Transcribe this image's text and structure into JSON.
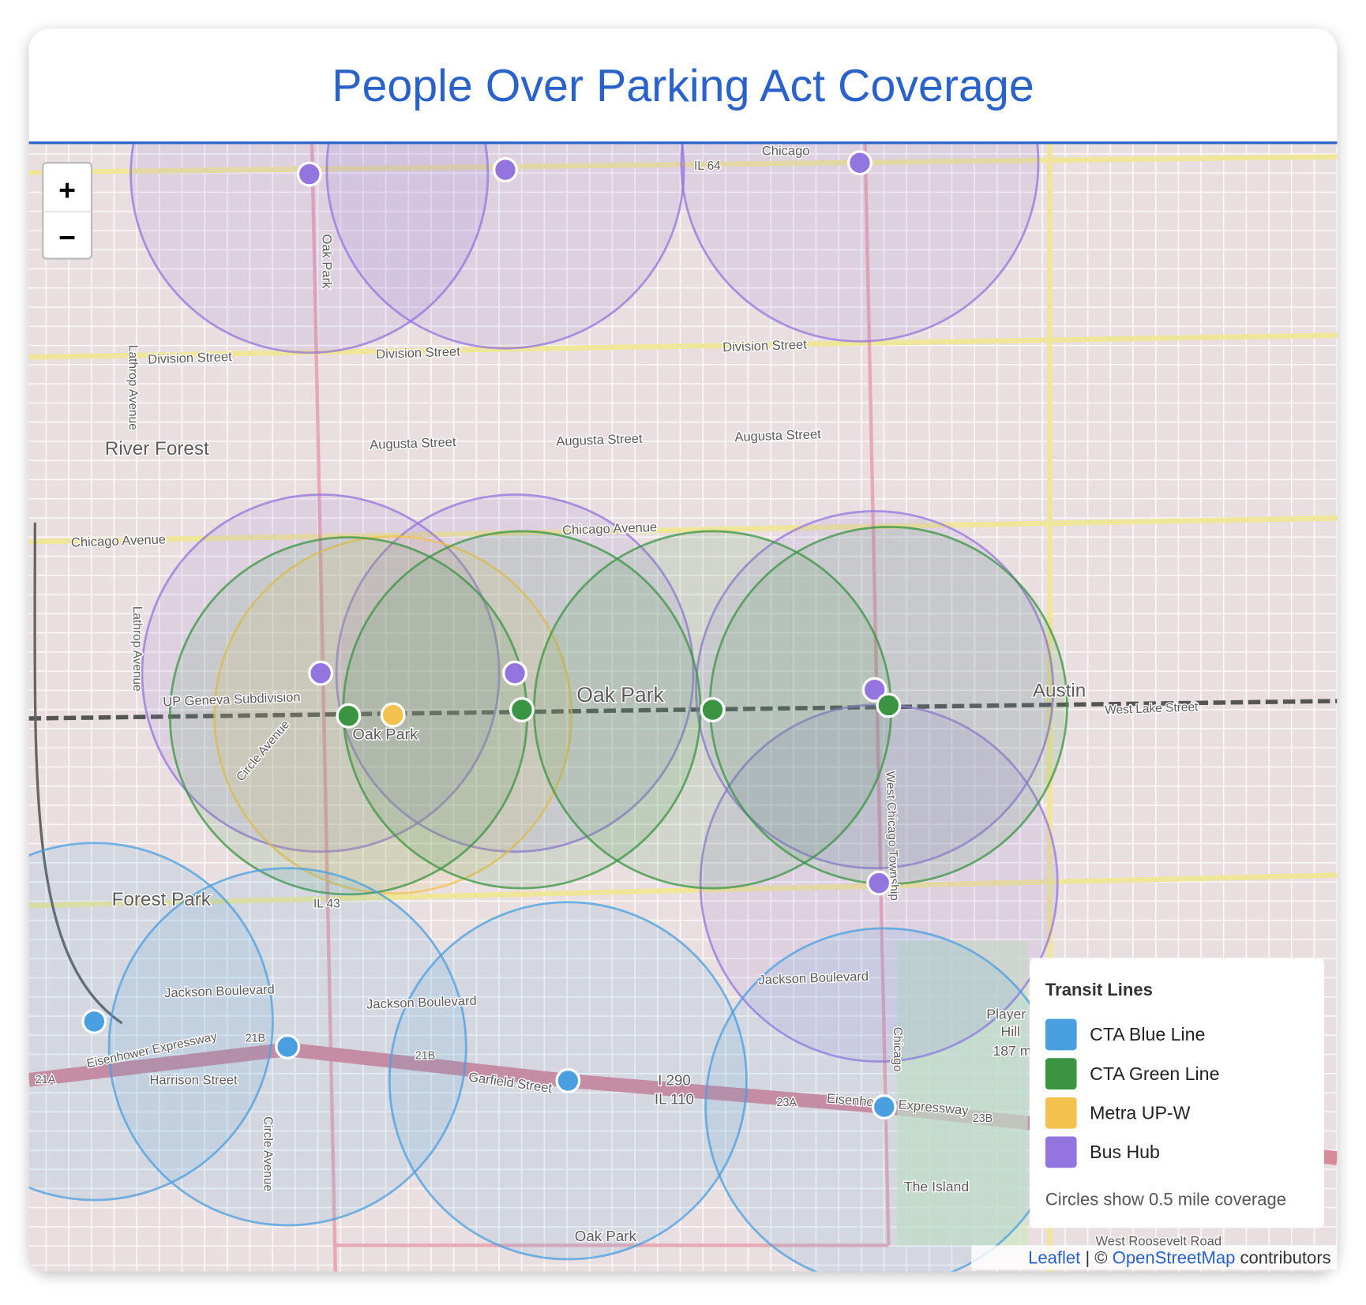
{
  "header": {
    "title": "People Over Parking Act Coverage"
  },
  "zoom": {
    "in": "+",
    "out": "−"
  },
  "legend": {
    "title": "Transit Lines",
    "items": [
      {
        "name": "CTA Blue Line",
        "color": "#4a9fe0"
      },
      {
        "name": "CTA Green Line",
        "color": "#3a9442"
      },
      {
        "name": "Metra UP-W",
        "color": "#f2c14e"
      },
      {
        "name": "Bus Hub",
        "color": "#9474de"
      }
    ],
    "note": "Circles show 0.5 mile coverage"
  },
  "map_labels": [
    "Division Street",
    "Division Street",
    "Division Street",
    "Augusta Street",
    "Augusta Street",
    "Augusta Street",
    "Chicago Avenue",
    "Chicago Avenue",
    "River Forest",
    "Oak Park",
    "Oak Park",
    "Oak Park",
    "Oak Park",
    "Forest Park",
    "Austin",
    "West Lake Street",
    "Jackson Boulevard",
    "Jackson Boulevard",
    "Jackson Boulevard",
    "Harrison Street",
    "Garfield Street",
    "Eisenhower Expressway",
    "Eisenhower Expressway",
    "Lathrop Avenue",
    "Lathrop Avenue",
    "Circle Avenue",
    "Circle Avenue",
    "West Chicago Township",
    "UP Geneva Subdivision",
    "Chicago",
    "Chicago",
    "IL 64",
    "IL 43",
    "I 290",
    "IL 110",
    "21A",
    "21B",
    "21B",
    "23A",
    "23B",
    "The Island",
    "West Roosevelt Road",
    "Player",
    "Hill",
    "187 m"
  ],
  "attribution": {
    "leaflet": "Leaflet",
    "separator": "| ©",
    "osm": "OpenStreetMap",
    "suffix": "contributors"
  }
}
